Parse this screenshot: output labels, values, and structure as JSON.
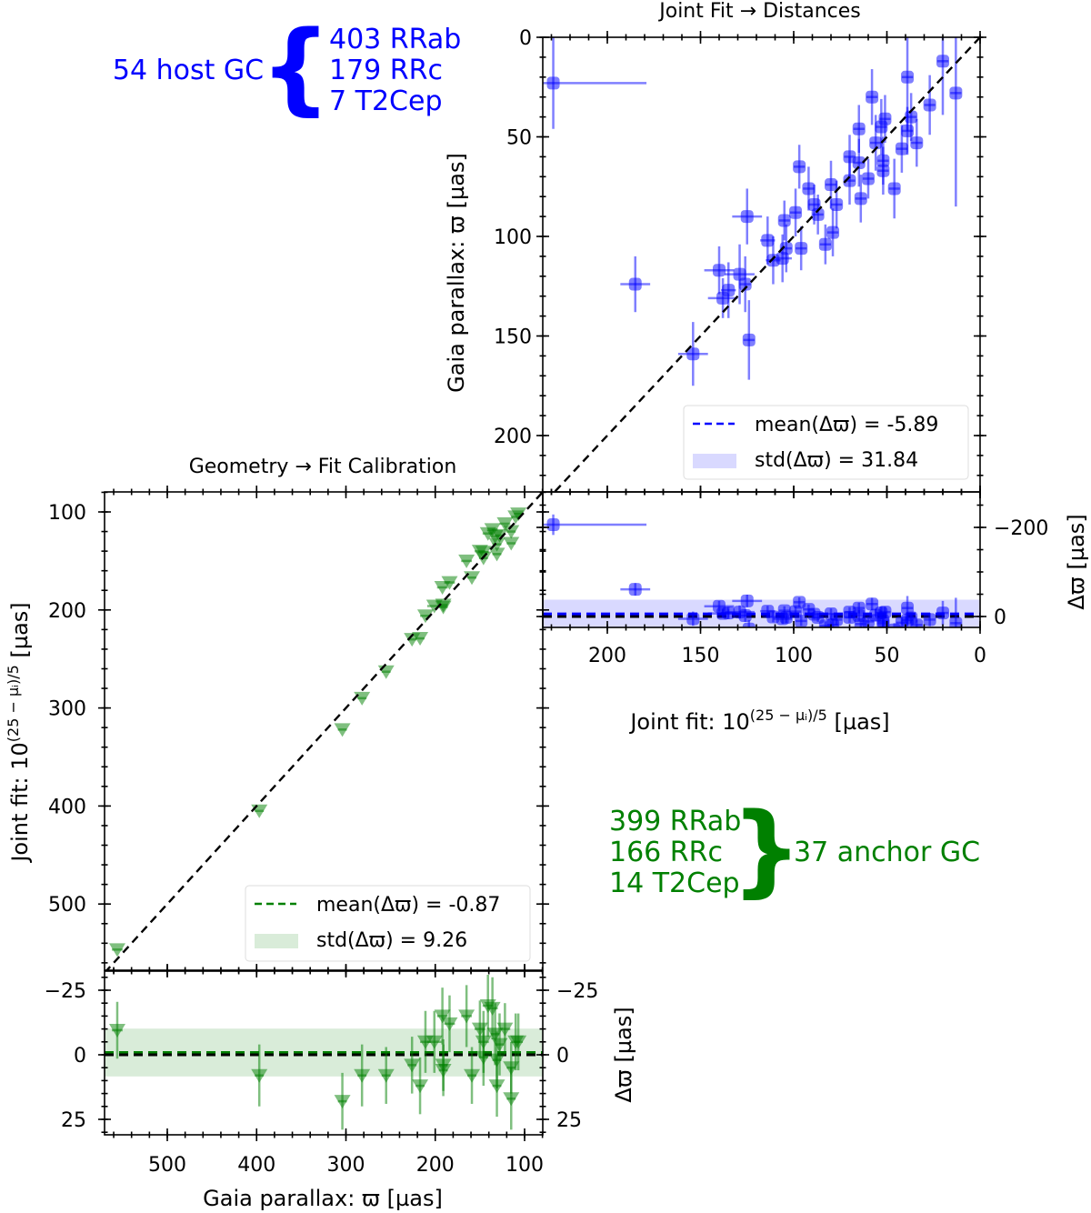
{
  "titles": {
    "top": "Joint Fit  →  Distances",
    "bottom": "Geometry  →  Fit Calibration"
  },
  "axis_labels": {
    "gaia": "Gaia parallax: ϖ [µas]",
    "joint_prefix": "Joint fit: 10",
    "joint_sup": "(25 − µᵢ)/5",
    "joint_suffix": " [µas]",
    "delta": "Δϖ [µas]"
  },
  "annotations": {
    "blue": {
      "host": "54 host GC",
      "lines": [
        "403 RRab",
        "179 RRc",
        "7 T2Cep"
      ],
      "brace": "{",
      "color": "#0000ff"
    },
    "green": {
      "anchor": "37 anchor GC",
      "lines": [
        "399 RRab",
        "166 RRc",
        "14 T2Cep"
      ],
      "brace": "}",
      "color": "#008000"
    }
  },
  "legends": {
    "top": {
      "mean": "mean(Δϖ) = -5.89",
      "std": "std(Δϖ) = 31.84"
    },
    "bottom": {
      "mean": "mean(Δϖ) = -0.87",
      "std": "std(Δϖ) = 9.26"
    }
  },
  "chart_data": [
    {
      "type": "scatter",
      "name": "Joint Fit → Distances (host GC)",
      "color": "#0000ff",
      "marker": "square",
      "xlabel": "Joint fit: 10^((25 − µᵢ)/5) [µas]",
      "ylabel": "Gaia parallax: ϖ [µas]",
      "residual_label": "Δϖ [µas]",
      "xlim": [
        235,
        0
      ],
      "ylim": [
        0,
        228
      ],
      "residual_ylim": [
        -280,
        24
      ],
      "x_ticks": [
        "200",
        "150",
        "100",
        "50",
        "0"
      ],
      "x_tick_values": [
        200,
        150,
        100,
        50,
        0
      ],
      "y_ticks": [
        "0",
        "50",
        "100",
        "150",
        "200"
      ],
      "y_tick_values": [
        0,
        50,
        100,
        150,
        200
      ],
      "residual_ticks": [
        "−200",
        "0"
      ],
      "residual_tick_values": [
        -200,
        0
      ],
      "mean_delta": -5.89,
      "std_delta": 31.84,
      "point_fields": [
        "joint_fit",
        "gaia_parallax",
        "x_err",
        "y_err"
      ],
      "points": [
        [
          229,
          23,
          50,
          23
        ],
        [
          185,
          124,
          8,
          14
        ],
        [
          154,
          159,
          8,
          16
        ],
        [
          124,
          152,
          3,
          20
        ],
        [
          125,
          90,
          8,
          14
        ],
        [
          140,
          117,
          8,
          12
        ],
        [
          129,
          119,
          8,
          15
        ],
        [
          135,
          127,
          4,
          14
        ],
        [
          138,
          131,
          8,
          10
        ],
        [
          126,
          124,
          3,
          14
        ],
        [
          114,
          102,
          4,
          12
        ],
        [
          111,
          112,
          4,
          12
        ],
        [
          105,
          92,
          3,
          10
        ],
        [
          104,
          106,
          3,
          12
        ],
        [
          106,
          111,
          5,
          12
        ],
        [
          99,
          88,
          3,
          12
        ],
        [
          96,
          106,
          3,
          11
        ],
        [
          97,
          65,
          3,
          11
        ],
        [
          92,
          76,
          3,
          11
        ],
        [
          89,
          84,
          3,
          10
        ],
        [
          87,
          89,
          3,
          10
        ],
        [
          80,
          74,
          3,
          12
        ],
        [
          77,
          84,
          3,
          12
        ],
        [
          79,
          98,
          3,
          12
        ],
        [
          83,
          104,
          3,
          10
        ],
        [
          70,
          60,
          3,
          11
        ],
        [
          70,
          72,
          3,
          12
        ],
        [
          65,
          46,
          3,
          12
        ],
        [
          65,
          63,
          3,
          12
        ],
        [
          60,
          71,
          3,
          10
        ],
        [
          64,
          81,
          3,
          12
        ],
        [
          58,
          30,
          3,
          14
        ],
        [
          56,
          53,
          3,
          14
        ],
        [
          53,
          45,
          3,
          14
        ],
        [
          51,
          41,
          3,
          12
        ],
        [
          52,
          62,
          3,
          12
        ],
        [
          52,
          67,
          3,
          12
        ],
        [
          46,
          76,
          3,
          15
        ],
        [
          42,
          56,
          3,
          12
        ],
        [
          39,
          20,
          3,
          27
        ],
        [
          39,
          47,
          3,
          12
        ],
        [
          37,
          40,
          3,
          12
        ],
        [
          34,
          53,
          3,
          12
        ],
        [
          27,
          34,
          3,
          15
        ],
        [
          20,
          12,
          3,
          27
        ],
        [
          13,
          28,
          3,
          57
        ]
      ]
    },
    {
      "type": "scatter",
      "name": "Geometry → Fit Calibration (anchor GC)",
      "color": "#008000",
      "marker": "triangle-down",
      "xlabel": "Gaia parallax: ϖ [µas]",
      "ylabel": "Joint fit: 10^((25 − µᵢ)/5) [µas]",
      "residual_label": "Δϖ [µas]",
      "xlim": [
        570,
        80
      ],
      "ylim": [
        80,
        568
      ],
      "residual_ylim": [
        -32,
        31
      ],
      "x_ticks": [
        "500",
        "400",
        "300",
        "200",
        "100"
      ],
      "x_tick_values": [
        500,
        400,
        300,
        200,
        100
      ],
      "y_ticks": [
        "100",
        "200",
        "300",
        "400",
        "500"
      ],
      "y_tick_values": [
        100,
        200,
        300,
        400,
        500
      ],
      "residual_ticks": [
        "−25",
        "0",
        "25"
      ],
      "residual_tick_values": [
        -25,
        0,
        25
      ],
      "mean_delta": -0.87,
      "std_delta": 9.26,
      "point_fields": [
        "gaia_parallax",
        "delta",
        "x_err",
        "delta_err"
      ],
      "points": [
        [
          556,
          -9.5,
          6,
          11
        ],
        [
          397,
          8,
          5,
          12
        ],
        [
          304,
          18,
          5,
          11
        ],
        [
          282,
          8,
          5,
          12
        ],
        [
          255,
          8,
          5,
          11
        ],
        [
          226,
          4,
          5,
          11
        ],
        [
          217,
          12,
          5,
          11
        ],
        [
          211,
          -5,
          6,
          12
        ],
        [
          201,
          -5,
          8,
          12
        ],
        [
          192,
          -15,
          6,
          11
        ],
        [
          184,
          -12,
          6,
          11
        ],
        [
          191,
          4,
          5,
          10
        ],
        [
          191,
          6,
          5,
          10
        ],
        [
          165,
          -15,
          6,
          12
        ],
        [
          159,
          8,
          5,
          11
        ],
        [
          150,
          -10,
          6,
          11
        ],
        [
          146,
          -5,
          6,
          12
        ],
        [
          146,
          1,
          5,
          11
        ],
        [
          141,
          -19,
          6,
          12
        ],
        [
          136,
          -18,
          6,
          12
        ],
        [
          133,
          -8,
          5,
          12
        ],
        [
          131,
          2,
          5,
          11
        ],
        [
          131,
          12,
          5,
          12
        ],
        [
          128,
          -4,
          5,
          12
        ],
        [
          122,
          -10,
          6,
          10
        ],
        [
          115,
          5,
          5,
          10
        ],
        [
          115,
          17,
          5,
          12
        ],
        [
          110,
          -5,
          5,
          11
        ],
        [
          107,
          -5,
          5,
          11
        ]
      ]
    }
  ]
}
